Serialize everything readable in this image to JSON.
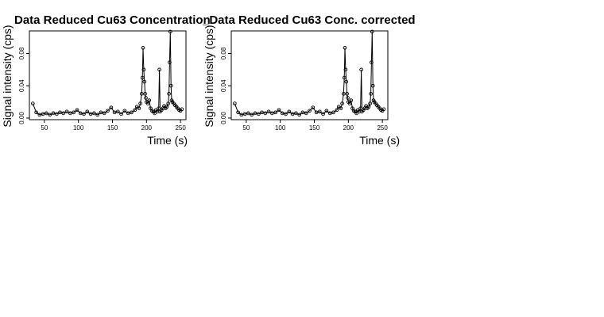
{
  "chart_data": [
    {
      "type": "line",
      "title": "Data Reduced Cu63 Concentration",
      "xlabel": "Time (s)",
      "ylabel": "Signal intensity (cps)",
      "xlim": [
        28,
        258
      ],
      "ylim": [
        -0.002,
        0.108
      ],
      "xticks": [
        50,
        100,
        150,
        200,
        250
      ],
      "yticks": [
        0.0,
        0.04,
        0.08
      ],
      "ytick_labels": [
        "0.00",
        "0.04",
        "0.08"
      ],
      "grid": false,
      "series": [
        {
          "x": [
            33,
            38,
            43,
            48,
            53,
            58,
            63,
            68,
            73,
            78,
            83,
            88,
            93,
            98,
            103,
            108,
            113,
            118,
            123,
            128,
            133,
            138,
            143,
            148,
            153,
            158,
            163,
            168,
            173,
            178,
            183,
            186,
            189,
            191,
            193,
            194,
            195,
            196,
            197,
            198,
            199,
            200,
            202,
            204,
            206,
            208,
            210,
            212,
            214,
            216,
            218,
            219,
            220,
            222,
            224,
            226,
            228,
            230,
            232,
            233,
            234,
            235,
            236,
            237,
            238,
            240,
            242,
            244,
            246,
            248,
            250,
            252
          ],
          "y": [
            0.018,
            0.007,
            0.004,
            0.005,
            0.006,
            0.004,
            0.006,
            0.005,
            0.007,
            0.006,
            0.008,
            0.006,
            0.007,
            0.01,
            0.006,
            0.005,
            0.008,
            0.005,
            0.006,
            0.004,
            0.007,
            0.006,
            0.009,
            0.013,
            0.007,
            0.008,
            0.005,
            0.009,
            0.006,
            0.007,
            0.01,
            0.014,
            0.012,
            0.018,
            0.03,
            0.05,
            0.087,
            0.06,
            0.045,
            0.03,
            0.025,
            0.02,
            0.018,
            0.022,
            0.012,
            0.009,
            0.008,
            0.006,
            0.01,
            0.008,
            0.012,
            0.06,
            0.008,
            0.01,
            0.012,
            0.015,
            0.012,
            0.014,
            0.018,
            0.03,
            0.069,
            0.107,
            0.04,
            0.022,
            0.02,
            0.018,
            0.016,
            0.014,
            0.012,
            0.01,
            0.009,
            0.011
          ]
        }
      ]
    },
    {
      "type": "line",
      "title": "_Data Reduced Cu63 Conc. corrected",
      "xlabel": "Time (s)",
      "ylabel": "Signal intensity (cps)",
      "xlim": [
        28,
        258
      ],
      "ylim": [
        -0.002,
        0.108
      ],
      "xticks": [
        50,
        100,
        150,
        200,
        250
      ],
      "yticks": [
        0.0,
        0.04,
        0.08
      ],
      "ytick_labels": [
        "0.00",
        "0.04",
        "0.08"
      ],
      "grid": false,
      "series": [
        {
          "x": [
            33,
            38,
            43,
            48,
            53,
            58,
            63,
            68,
            73,
            78,
            83,
            88,
            93,
            98,
            103,
            108,
            113,
            118,
            123,
            128,
            133,
            138,
            143,
            148,
            153,
            158,
            163,
            168,
            173,
            178,
            183,
            186,
            189,
            191,
            193,
            194,
            195,
            196,
            197,
            198,
            199,
            200,
            202,
            204,
            206,
            208,
            210,
            212,
            214,
            216,
            218,
            219,
            220,
            222,
            224,
            226,
            228,
            230,
            232,
            233,
            234,
            235,
            236,
            237,
            238,
            240,
            242,
            244,
            246,
            248,
            250,
            252
          ],
          "y": [
            0.018,
            0.007,
            0.004,
            0.005,
            0.006,
            0.004,
            0.006,
            0.005,
            0.007,
            0.006,
            0.008,
            0.006,
            0.007,
            0.01,
            0.006,
            0.005,
            0.008,
            0.005,
            0.006,
            0.004,
            0.007,
            0.006,
            0.009,
            0.013,
            0.007,
            0.008,
            0.005,
            0.009,
            0.006,
            0.007,
            0.01,
            0.014,
            0.012,
            0.018,
            0.03,
            0.05,
            0.087,
            0.06,
            0.045,
            0.03,
            0.025,
            0.02,
            0.018,
            0.022,
            0.012,
            0.009,
            0.008,
            0.006,
            0.01,
            0.008,
            0.012,
            0.06,
            0.008,
            0.01,
            0.012,
            0.015,
            0.012,
            0.014,
            0.018,
            0.03,
            0.069,
            0.107,
            0.04,
            0.022,
            0.02,
            0.018,
            0.016,
            0.014,
            0.012,
            0.01,
            0.009,
            0.011
          ]
        }
      ]
    }
  ]
}
